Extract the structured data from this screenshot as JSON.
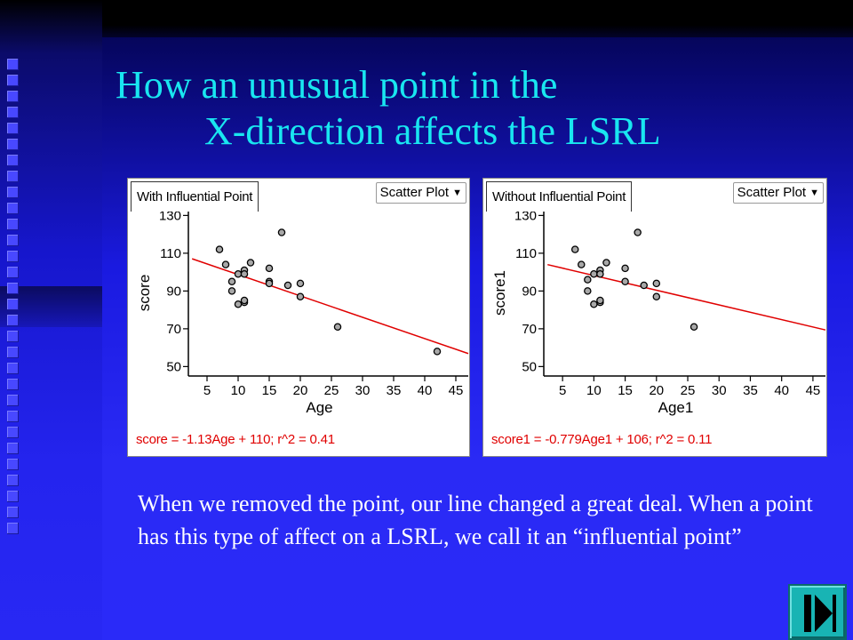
{
  "slide": {
    "title_line1": "How an unusual point in the",
    "title_line2": "X-direction affects the LSRL",
    "body": "When we removed the point, our line changed a great deal.  When a point has this type of affect on a LSRL, we call it an “influential point”",
    "colors": {
      "title": "#19e6f0",
      "background": "#2a2af5",
      "body_text": "#ffffff",
      "regression_line": "#e00000"
    },
    "nav_icon": "end-show-icon"
  },
  "chart_data": [
    {
      "type": "scatter",
      "tab_label": "With Influential Point",
      "dropdown_label": "Scatter Plot",
      "xlabel": "Age",
      "ylabel": "score",
      "xlim": [
        2,
        47
      ],
      "ylim": [
        45,
        133
      ],
      "xticks": [
        5,
        10,
        15,
        20,
        25,
        30,
        35,
        40,
        45
      ],
      "yticks": [
        50,
        70,
        90,
        110,
        130
      ],
      "points": [
        [
          7,
          112
        ],
        [
          8,
          104
        ],
        [
          9,
          95
        ],
        [
          9,
          90
        ],
        [
          10,
          99
        ],
        [
          10,
          83
        ],
        [
          11,
          101
        ],
        [
          11,
          99
        ],
        [
          11,
          84
        ],
        [
          11,
          85
        ],
        [
          12,
          105
        ],
        [
          15,
          102
        ],
        [
          15,
          95
        ],
        [
          15,
          94
        ],
        [
          17,
          121
        ],
        [
          18,
          93
        ],
        [
          20,
          94
        ],
        [
          20,
          87
        ],
        [
          26,
          71
        ],
        [
          42,
          58
        ]
      ],
      "regression": {
        "slope": -1.13,
        "intercept": 110
      },
      "equation": "score = -1.13Age + 110; r^2 = 0.41"
    },
    {
      "type": "scatter",
      "tab_label": "Without Influential Point",
      "dropdown_label": "Scatter Plot",
      "xlabel": "Age1",
      "ylabel": "score1",
      "xlim": [
        2,
        47
      ],
      "ylim": [
        45,
        133
      ],
      "xticks": [
        5,
        10,
        15,
        20,
        25,
        30,
        35,
        40,
        45
      ],
      "yticks": [
        50,
        70,
        90,
        110,
        130
      ],
      "points": [
        [
          7,
          112
        ],
        [
          8,
          104
        ],
        [
          9,
          96
        ],
        [
          9,
          90
        ],
        [
          10,
          99
        ],
        [
          10,
          83
        ],
        [
          11,
          101
        ],
        [
          11,
          99
        ],
        [
          11,
          84
        ],
        [
          11,
          85
        ],
        [
          12,
          105
        ],
        [
          15,
          102
        ],
        [
          15,
          95
        ],
        [
          17,
          121
        ],
        [
          18,
          93
        ],
        [
          20,
          94
        ],
        [
          20,
          87
        ],
        [
          26,
          71
        ]
      ],
      "regression": {
        "slope": -0.779,
        "intercept": 106
      },
      "equation": "score1 = -0.779Age1 + 106; r^2 = 0.11"
    }
  ]
}
